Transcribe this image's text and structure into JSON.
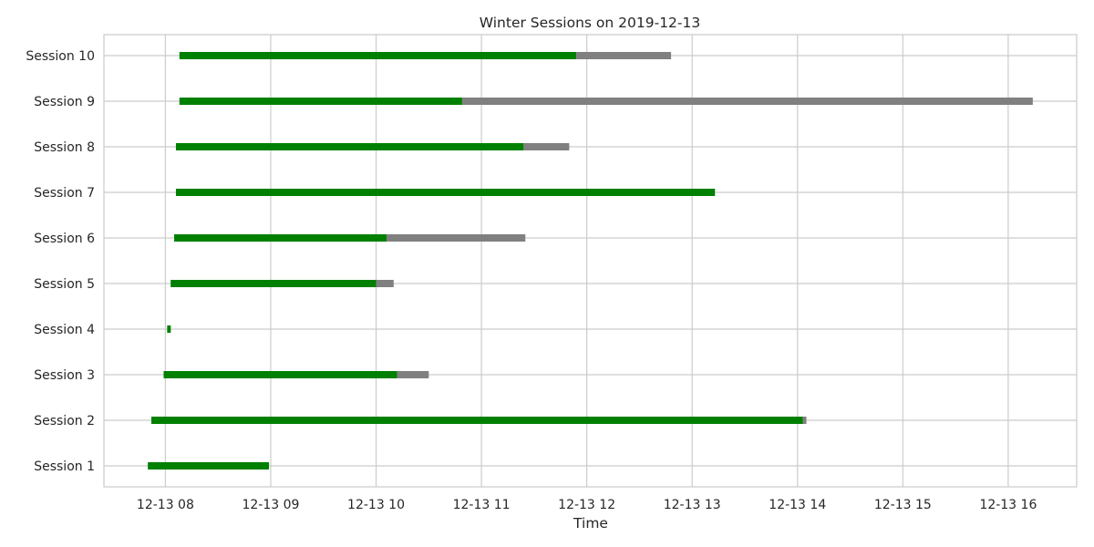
{
  "chart_data": {
    "type": "bar",
    "orientation": "horizontal-timeline",
    "title": "Winter Sessions on 2019-12-13",
    "xlabel": "Time",
    "ylabel": "",
    "xlim": [
      "2019-12-13 07:25",
      "2019-12-13 16:39"
    ],
    "x_ticks": [
      {
        "value": "2019-12-13 08:00",
        "label": "12-13 08"
      },
      {
        "value": "2019-12-13 09:00",
        "label": "12-13 09"
      },
      {
        "value": "2019-12-13 10:00",
        "label": "12-13 10"
      },
      {
        "value": "2019-12-13 11:00",
        "label": "12-13 11"
      },
      {
        "value": "2019-12-13 12:00",
        "label": "12-13 12"
      },
      {
        "value": "2019-12-13 13:00",
        "label": "12-13 13"
      },
      {
        "value": "2019-12-13 14:00",
        "label": "12-13 14"
      },
      {
        "value": "2019-12-13 15:00",
        "label": "12-13 15"
      },
      {
        "value": "2019-12-13 16:00",
        "label": "12-13 16"
      }
    ],
    "categories": [
      "Session 1",
      "Session 2",
      "Session 3",
      "Session 4",
      "Session 5",
      "Session 6",
      "Session 7",
      "Session 8",
      "Session 9",
      "Session 10"
    ],
    "series": [
      {
        "color": "#008000",
        "segments": [
          {
            "start": "2019-12-13 07:50",
            "end": "2019-12-13 08:59"
          },
          {
            "start": "2019-12-13 07:52",
            "end": "2019-12-13 14:03"
          },
          {
            "start": "2019-12-13 07:59",
            "end": "2019-12-13 10:12"
          },
          {
            "start": "2019-12-13 08:01",
            "end": "2019-12-13 08:03"
          },
          {
            "start": "2019-12-13 08:03",
            "end": "2019-12-13 10:00"
          },
          {
            "start": "2019-12-13 08:05",
            "end": "2019-12-13 10:06"
          },
          {
            "start": "2019-12-13 08:06",
            "end": "2019-12-13 13:13"
          },
          {
            "start": "2019-12-13 08:06",
            "end": "2019-12-13 11:24"
          },
          {
            "start": "2019-12-13 08:08",
            "end": "2019-12-13 10:49"
          },
          {
            "start": "2019-12-13 08:08",
            "end": "2019-12-13 11:54"
          }
        ]
      },
      {
        "color": "#808080",
        "segments": [
          {
            "start": null,
            "end": null
          },
          {
            "start": "2019-12-13 14:03",
            "end": "2019-12-13 14:05"
          },
          {
            "start": "2019-12-13 10:12",
            "end": "2019-12-13 10:30"
          },
          {
            "start": null,
            "end": null
          },
          {
            "start": "2019-12-13 10:00",
            "end": "2019-12-13 10:10"
          },
          {
            "start": "2019-12-13 10:06",
            "end": "2019-12-13 11:25"
          },
          {
            "start": null,
            "end": null
          },
          {
            "start": "2019-12-13 11:24",
            "end": "2019-12-13 11:50"
          },
          {
            "start": "2019-12-13 10:49",
            "end": "2019-12-13 16:14"
          },
          {
            "start": "2019-12-13 11:54",
            "end": "2019-12-13 12:48"
          }
        ]
      }
    ],
    "grid": true,
    "legend": "none"
  },
  "colors": {
    "grid": "#cccccc",
    "frame": "#cccccc",
    "text": "#262626"
  }
}
